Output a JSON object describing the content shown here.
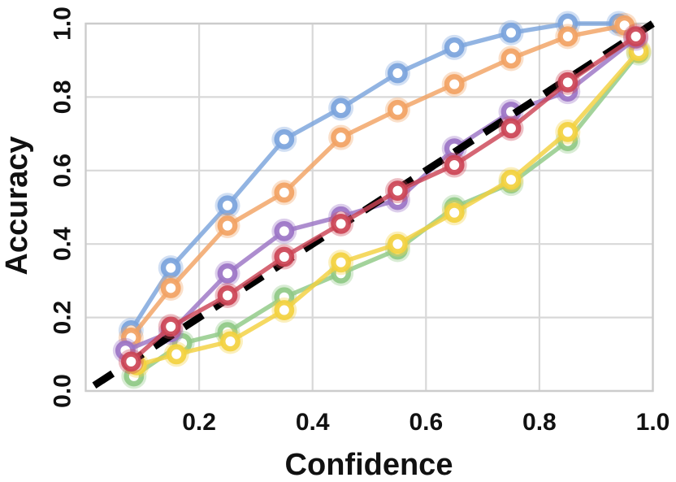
{
  "chart_data": {
    "type": "line",
    "title": "",
    "xlabel": "Confidence",
    "ylabel": "Accuracy",
    "xlim": [
      0.0,
      1.0
    ],
    "ylim": [
      0.0,
      1.0
    ],
    "grid": true,
    "legend": "none",
    "grid_color": "#d8d8d8",
    "frame_color": "#cccccc",
    "xticks": [
      {
        "value": 0.2,
        "label": "0.2"
      },
      {
        "value": 0.4,
        "label": "0.4"
      },
      {
        "value": 0.6,
        "label": "0.6"
      },
      {
        "value": 0.8,
        "label": "0.8"
      },
      {
        "value": 1.0,
        "label": "1.0"
      }
    ],
    "yticks": [
      {
        "value": 0.0,
        "label": "0.0"
      },
      {
        "value": 0.2,
        "label": "0.2"
      },
      {
        "value": 0.4,
        "label": "0.4"
      },
      {
        "value": 0.6,
        "label": "0.6"
      },
      {
        "value": 0.8,
        "label": "0.8"
      },
      {
        "value": 1.0,
        "label": "1.0"
      }
    ],
    "reference_line": {
      "name": "perfect-calibration-diagonal",
      "style": "dashed",
      "color": "#000000",
      "from": [
        0.015,
        0.015
      ],
      "to": [
        1.01,
        1.01
      ]
    },
    "draw_order": [
      "blue",
      "orange",
      "green",
      "yellow",
      "purple",
      "diagonal",
      "red"
    ],
    "series": [
      {
        "name": "blue",
        "color": "#7AA3DC",
        "x": [
          0.08,
          0.15,
          0.25,
          0.35,
          0.45,
          0.55,
          0.65,
          0.75,
          0.85,
          0.94
        ],
        "y": [
          0.165,
          0.335,
          0.505,
          0.685,
          0.77,
          0.865,
          0.935,
          0.975,
          1.0,
          1.0
        ]
      },
      {
        "name": "orange",
        "color": "#F2A263",
        "x": [
          0.08,
          0.15,
          0.25,
          0.35,
          0.45,
          0.55,
          0.65,
          0.75,
          0.85,
          0.95
        ],
        "y": [
          0.145,
          0.28,
          0.45,
          0.54,
          0.69,
          0.765,
          0.835,
          0.905,
          0.965,
          0.995
        ]
      },
      {
        "name": "green",
        "color": "#8FC985",
        "x": [
          0.085,
          0.17,
          0.25,
          0.35,
          0.45,
          0.55,
          0.65,
          0.75,
          0.85,
          0.975
        ],
        "y": [
          0.04,
          0.13,
          0.16,
          0.255,
          0.32,
          0.385,
          0.5,
          0.565,
          0.68,
          0.92
        ]
      },
      {
        "name": "yellow",
        "color": "#F3D13F",
        "x": [
          0.09,
          0.16,
          0.255,
          0.35,
          0.45,
          0.55,
          0.65,
          0.75,
          0.85,
          0.975
        ],
        "y": [
          0.07,
          0.1,
          0.135,
          0.22,
          0.35,
          0.4,
          0.485,
          0.575,
          0.705,
          0.925
        ]
      },
      {
        "name": "purple",
        "color": "#9B74C5",
        "x": [
          0.07,
          0.15,
          0.25,
          0.35,
          0.45,
          0.55,
          0.65,
          0.75,
          0.85,
          0.97
        ],
        "y": [
          0.11,
          0.16,
          0.32,
          0.435,
          0.475,
          0.52,
          0.66,
          0.76,
          0.815,
          0.96
        ]
      },
      {
        "name": "red",
        "color": "#CC4455",
        "x": [
          0.08,
          0.15,
          0.25,
          0.35,
          0.45,
          0.55,
          0.65,
          0.75,
          0.85,
          0.97
        ],
        "y": [
          0.08,
          0.175,
          0.26,
          0.365,
          0.455,
          0.545,
          0.615,
          0.715,
          0.84,
          0.965
        ]
      }
    ]
  }
}
